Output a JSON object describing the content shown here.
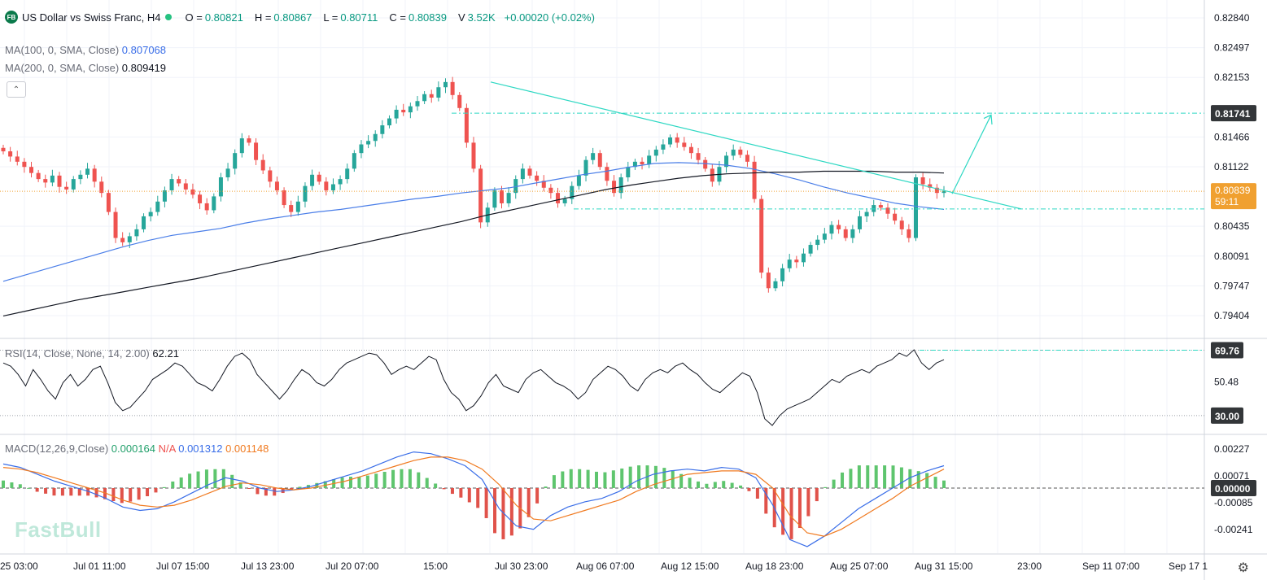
{
  "header": {
    "logo": "FB",
    "title": "US Dollar vs Swiss Franc, H4",
    "o_label": "O =",
    "o_value": "0.80821",
    "h_label": "H =",
    "h_value": "0.80867",
    "l_label": "L =",
    "l_value": "0.80711",
    "c_label": "C =",
    "c_value": "0.80839",
    "v_label": "V",
    "v_value": "3.52K",
    "change": "+0.00020 (+0.02%)"
  },
  "indicators": {
    "ma100_label": "MA(100, 0, SMA, Close)",
    "ma100_value": "0.807068",
    "ma200_label": "MA(200, 0, SMA, Close)",
    "ma200_value": "0.809419",
    "rsi_label": "RSI(14, Close, None, 14, 2.00)",
    "rsi_value": "62.21",
    "macd_label": "MACD(12,26,9,Close)",
    "macd_hist": "0.000164",
    "macd_na": "N/A",
    "macd_line": "0.001312",
    "macd_signal": "0.001148"
  },
  "watermark": "FastBull",
  "colors": {
    "up": "#26a69a",
    "down": "#ef5350",
    "ma100": "#4a7ee8",
    "ma200": "#131722",
    "trend": "#2ed8c3",
    "price_tag": "#f0a030",
    "macd": "#3a6ee8",
    "signal": "#f07a20",
    "label_dark": "#333639"
  },
  "chart_data": {
    "type": "candlestick",
    "timeframe": "H4",
    "price_axis": {
      "ticks": [
        "0.82840",
        "0.82497",
        "0.82153",
        "0.81466",
        "0.81122",
        "0.80435",
        "0.80091",
        "0.79747",
        "0.79404"
      ],
      "range": [
        0.7915,
        0.83
      ]
    },
    "time_axis": [
      "25 03:00",
      "Jul 01 11:00",
      "Jul 07 15:00",
      "Jul 13 23:00",
      "Jul 20 07:00",
      "15:00",
      "Jul 30 23:00",
      "Aug 06 07:00",
      "Aug 12 15:00",
      "Aug 18 23:00",
      "Aug 25 07:00",
      "Aug 31 15:00",
      "23:00",
      "Sep 11 07:00",
      "Sep 17 1"
    ],
    "price_tags": {
      "resistance": "0.81741",
      "current": "0.80839",
      "countdown": "59:11"
    },
    "levels": {
      "resistance": 0.81741,
      "support": 0.80635,
      "current": 0.80839
    },
    "close_series": [
      0.813,
      0.8124,
      0.8118,
      0.8112,
      0.8105,
      0.8098,
      0.8094,
      0.8102,
      0.8089,
      0.8086,
      0.8098,
      0.8103,
      0.811,
      0.8095,
      0.8082,
      0.806,
      0.803,
      0.8025,
      0.8032,
      0.804,
      0.8055,
      0.806,
      0.8072,
      0.8085,
      0.8098,
      0.8093,
      0.8086,
      0.808,
      0.807,
      0.8062,
      0.8078,
      0.81,
      0.811,
      0.8128,
      0.8145,
      0.814,
      0.812,
      0.8108,
      0.8095,
      0.8085,
      0.8068,
      0.806,
      0.8072,
      0.809,
      0.8103,
      0.8095,
      0.8085,
      0.8092,
      0.8098,
      0.811,
      0.8128,
      0.8138,
      0.8142,
      0.815,
      0.816,
      0.8168,
      0.8178,
      0.8175,
      0.8182,
      0.8188,
      0.8196,
      0.8192,
      0.8204,
      0.821,
      0.8195,
      0.818,
      0.814,
      0.811,
      0.8048,
      0.8065,
      0.8085,
      0.807,
      0.8082,
      0.8098,
      0.811,
      0.8102,
      0.8096,
      0.8088,
      0.8082,
      0.807,
      0.8075,
      0.809,
      0.8102,
      0.812,
      0.8128,
      0.8112,
      0.8096,
      0.8082,
      0.81,
      0.8112,
      0.8118,
      0.8115,
      0.8125,
      0.8132,
      0.8138,
      0.8146,
      0.814,
      0.8135,
      0.8128,
      0.812,
      0.811,
      0.8095,
      0.8112,
      0.8125,
      0.8132,
      0.8126,
      0.8118,
      0.8075,
      0.799,
      0.7972,
      0.798,
      0.7995,
      0.8005,
      0.8002,
      0.8012,
      0.8022,
      0.8028,
      0.8035,
      0.8045,
      0.804,
      0.803,
      0.804,
      0.8055,
      0.806,
      0.8068,
      0.8065,
      0.8058,
      0.805,
      0.804,
      0.803,
      0.81,
      0.8092,
      0.8088,
      0.8082,
      0.8084
    ],
    "ma100": [
      0.798,
      0.7988,
      0.7996,
      0.8004,
      0.8012,
      0.802,
      0.8027,
      0.8033,
      0.8037,
      0.8041,
      0.8047,
      0.8052,
      0.8056,
      0.806,
      0.8063,
      0.8067,
      0.8071,
      0.8075,
      0.8078,
      0.8082,
      0.8085,
      0.8088,
      0.8093,
      0.8098,
      0.8103,
      0.8107,
      0.8112,
      0.8116,
      0.8117,
      0.8116,
      0.8114,
      0.811,
      0.8104,
      0.8097,
      0.8089,
      0.8082,
      0.8076,
      0.807,
      0.8066,
      0.8063
    ],
    "ma200": [
      0.794,
      0.7946,
      0.7952,
      0.7958,
      0.7963,
      0.7968,
      0.7973,
      0.7978,
      0.7983,
      0.7989,
      0.7995,
      0.8001,
      0.8007,
      0.8013,
      0.8019,
      0.8025,
      0.8031,
      0.8037,
      0.8043,
      0.8049,
      0.8056,
      0.8062,
      0.8068,
      0.8074,
      0.808,
      0.8086,
      0.8091,
      0.8095,
      0.8099,
      0.8102,
      0.8104,
      0.8105,
      0.8106,
      0.8106,
      0.8107,
      0.8107,
      0.8107,
      0.8106,
      0.8106,
      0.8105
    ],
    "rsi": {
      "ticks": [
        "69.76",
        "50.48",
        "30.00"
      ],
      "levels": [
        69.76,
        30.0
      ],
      "values": [
        62,
        60,
        55,
        48,
        58,
        52,
        45,
        40,
        50,
        55,
        48,
        52,
        58,
        60,
        50,
        38,
        33,
        35,
        40,
        45,
        52,
        55,
        58,
        62,
        60,
        55,
        50,
        48,
        45,
        52,
        60,
        66,
        68,
        64,
        55,
        50,
        45,
        40,
        45,
        52,
        58,
        55,
        50,
        48,
        52,
        58,
        62,
        64,
        66,
        68,
        67,
        62,
        55,
        58,
        60,
        58,
        62,
        66,
        64,
        52,
        44,
        40,
        33,
        36,
        42,
        50,
        55,
        48,
        46,
        44,
        52,
        56,
        58,
        54,
        50,
        48,
        45,
        40,
        44,
        52,
        56,
        60,
        58,
        54,
        48,
        45,
        52,
        56,
        58,
        56,
        60,
        62,
        58,
        55,
        50,
        46,
        44,
        48,
        52,
        56,
        54,
        44,
        28,
        24,
        30,
        34,
        36,
        38,
        40,
        44,
        48,
        52,
        50,
        54,
        56,
        58,
        56,
        60,
        62,
        64,
        68,
        66,
        70,
        62,
        58,
        62,
        64
      ]
    },
    "macd": {
      "ticks": [
        "0.00227",
        "0.00071",
        "0.00000",
        "-0.00085",
        "-0.00241"
      ],
      "macd_line": [
        0.0014,
        0.0012,
        0.0008,
        0.0004,
        0.0001,
        -0.0002,
        -0.0006,
        -0.0011,
        -0.0013,
        -0.0012,
        -0.0008,
        -0.0003,
        0.0002,
        0.0006,
        0.0004,
        0.0,
        -0.0002,
        -0.0001,
        0.0001,
        0.0004,
        0.0007,
        0.001,
        0.0014,
        0.0018,
        0.0021,
        0.002,
        0.0017,
        0.0013,
        0.0005,
        -0.0012,
        -0.0022,
        -0.0024,
        -0.0016,
        -0.0011,
        -0.0008,
        -0.0006,
        -0.0002,
        0.0004,
        0.0008,
        0.001,
        0.0011,
        0.001,
        0.0012,
        0.0011,
        0.0006,
        -0.001,
        -0.003,
        -0.0034,
        -0.0028,
        -0.002,
        -0.0012,
        -0.0006,
        0.0,
        0.0006,
        0.001,
        0.0013
      ],
      "signal": [
        0.0012,
        0.0011,
        0.0009,
        0.0006,
        0.0003,
        0.0,
        -0.0003,
        -0.0007,
        -0.001,
        -0.0011,
        -0.001,
        -0.0007,
        -0.0003,
        0.0001,
        0.0003,
        0.0002,
        0.0,
        -0.0001,
        0.0,
        0.0002,
        0.0004,
        0.0007,
        0.001,
        0.0013,
        0.0016,
        0.0018,
        0.0018,
        0.0016,
        0.0011,
        0.0002,
        -0.001,
        -0.0018,
        -0.0019,
        -0.0016,
        -0.0013,
        -0.001,
        -0.0007,
        -0.0002,
        0.0002,
        0.0005,
        0.0008,
        0.0009,
        0.001,
        0.001,
        0.0008,
        0.0,
        -0.0016,
        -0.0026,
        -0.0028,
        -0.0024,
        -0.0018,
        -0.0012,
        -0.0006,
        0.0001,
        0.0006,
        0.0011
      ]
    },
    "annotations": [
      "descending trendline",
      "resistance line 0.81741",
      "support line",
      "projected up arrow"
    ]
  }
}
